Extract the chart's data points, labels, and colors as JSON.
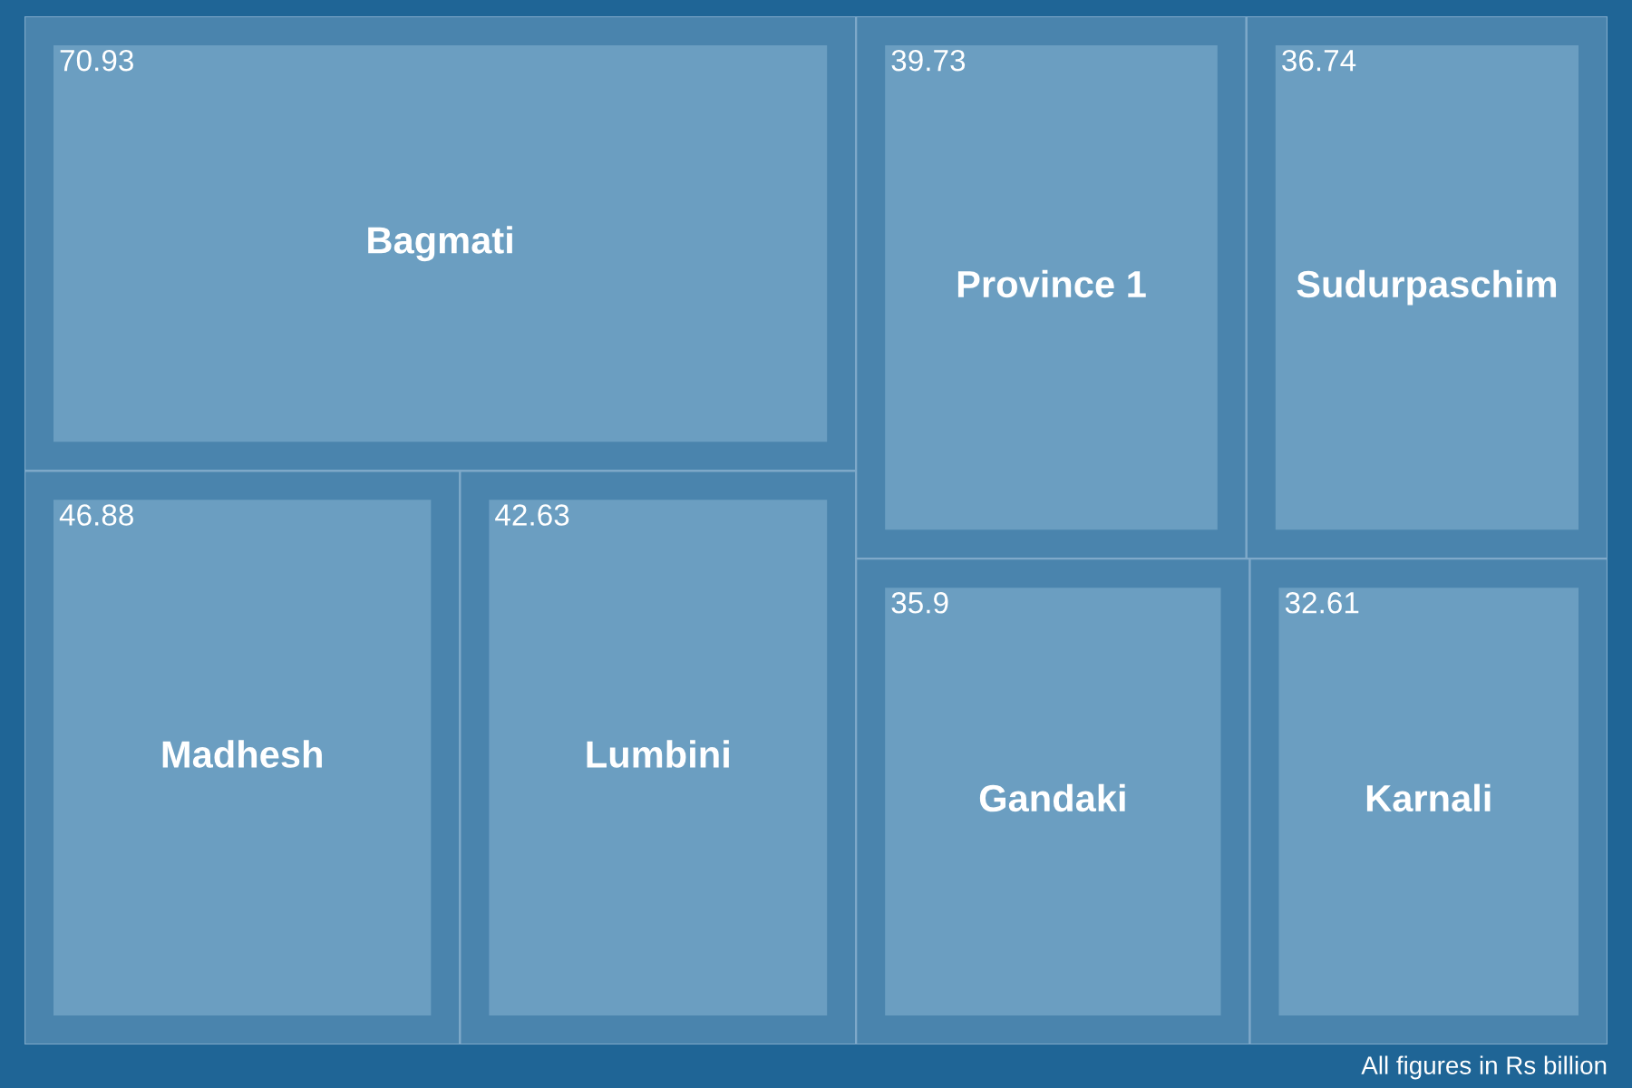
{
  "chart_data": {
    "type": "other",
    "categories": [
      "Bagmati",
      "Madhesh",
      "Lumbini",
      "Province 1",
      "Sudurpaschim",
      "Gandaki",
      "Karnali"
    ],
    "values": [
      70.93,
      46.88,
      42.63,
      39.73,
      36.74,
      35.9,
      32.61
    ],
    "data_labels": true,
    "colors": [
      "#6b9ec1",
      "#6b9ec1",
      "#6b9ec1",
      "#6b9ec1",
      "#6b9ec1",
      "#6b9ec1",
      "#6b9ec1"
    ],
    "annotations": [
      "All figures in Rs billion"
    ]
  }
}
